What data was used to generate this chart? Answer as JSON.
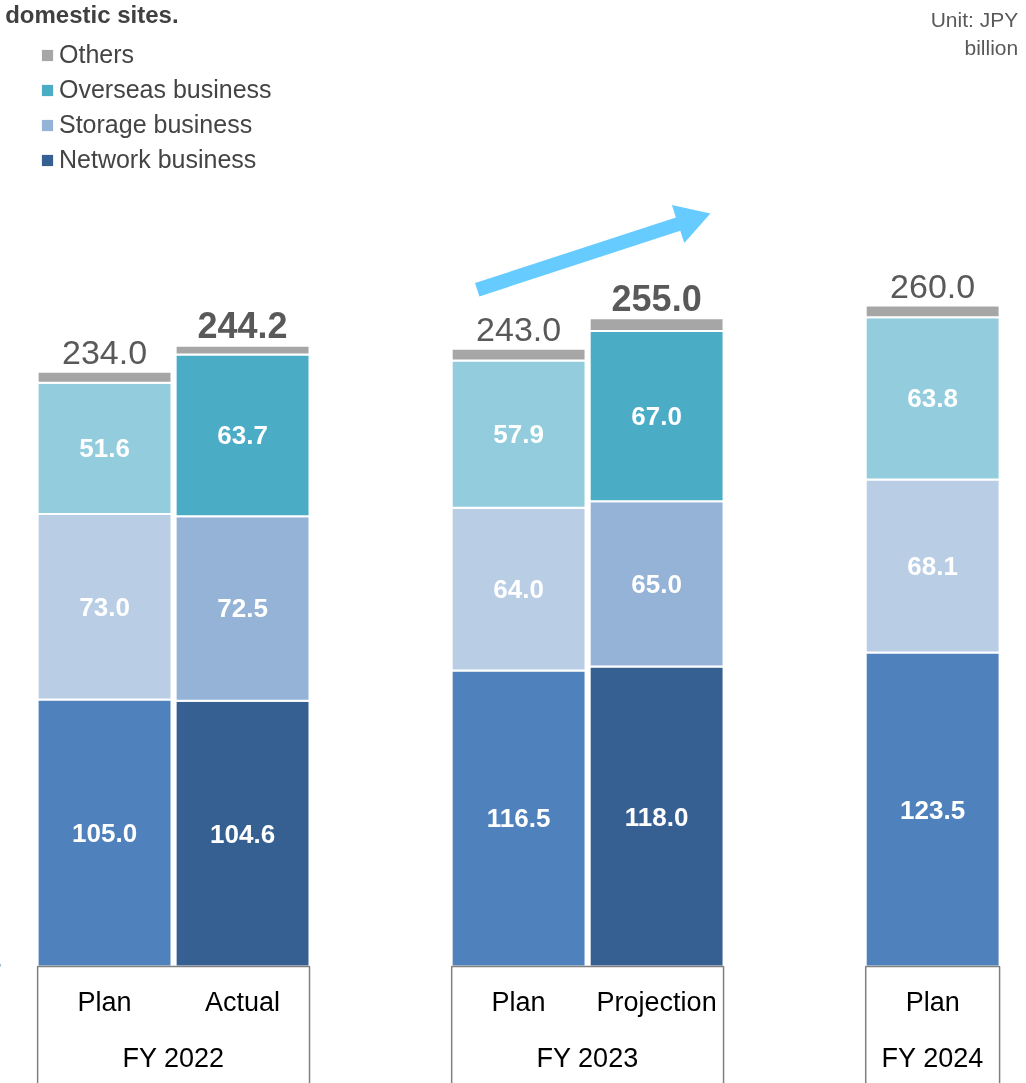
{
  "chart_data": {
    "type": "bar",
    "stacked": true,
    "title": "domestic sites.",
    "categories": [
      "Plan",
      "Actual",
      null,
      "Plan",
      "Projection",
      null,
      "Plan"
    ],
    "series": [
      {
        "name": "Network business",
        "color": "#376092",
        "colors": [
          "#4f81bd",
          "#376092",
          null,
          "#4f81bd",
          "#376092",
          null,
          "#4f81bd"
        ],
        "values": [
          105.0,
          104.6,
          null,
          116.5,
          118.0,
          null,
          123.5
        ],
        "value_labels": [
          "105.0",
          "104.6",
          null,
          "116.5",
          "118.0",
          null,
          "123.5"
        ]
      },
      {
        "name": "Storage business",
        "color": "#95b3d7",
        "colors": [
          "#b9cde5",
          "#95b3d7",
          null,
          "#b9cde5",
          "#95b3d7",
          null,
          "#b9cde5"
        ],
        "values": [
          73.0,
          72.5,
          null,
          64.0,
          65.0,
          null,
          68.1
        ],
        "value_labels": [
          "73.0",
          "72.5",
          null,
          "64.0",
          "65.0",
          null,
          "68.1"
        ]
      },
      {
        "name": "Overseas business",
        "color": "#4bacc6",
        "colors": [
          "#93cddd",
          "#4bacc6",
          null,
          "#93cddd",
          "#4bacc6",
          null,
          "#93cddd"
        ],
        "values": [
          51.6,
          63.7,
          null,
          57.9,
          67.0,
          null,
          63.8
        ],
        "value_labels": [
          "51.6",
          "63.7",
          null,
          "57.9",
          "67.0",
          null,
          "63.8"
        ]
      },
      {
        "name": "Others",
        "color": "#a6a6a6",
        "colors": [
          "#a6a6a6",
          "#a6a6a6",
          null,
          "#a6a6a6",
          "#a6a6a6",
          null,
          "#a6a6a6"
        ],
        "values": [
          4.4,
          3.4,
          null,
          4.6,
          5.0,
          null,
          4.6
        ]
      }
    ],
    "totals": [
      "234.0",
      "244.2",
      null,
      "243.0",
      "255.0",
      null,
      "260.0"
    ],
    "annotations": [
      "Unit: JPY billion",
      "FY 2022",
      "FY 2023",
      "FY 2024"
    ],
    "legend": "top left",
    "grid": false
  }
}
